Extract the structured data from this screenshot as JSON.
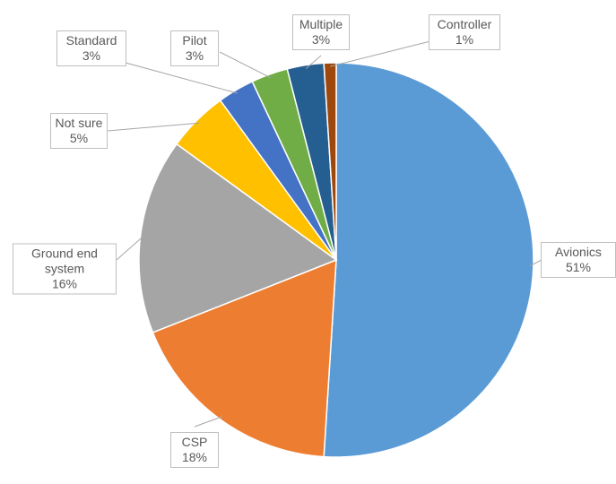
{
  "chart_data": {
    "type": "pie",
    "categories": [
      "Avionics",
      "CSP",
      "Ground end system",
      "Not sure",
      "Standard",
      "Pilot",
      "Multiple",
      "Controller"
    ],
    "values": [
      51,
      18,
      16,
      5,
      3,
      3,
      3,
      1
    ],
    "value_labels": [
      "51%",
      "18%",
      "16%",
      "5%",
      "3%",
      "3%",
      "3%",
      "1%"
    ],
    "colors": [
      "#5b9bd5",
      "#ed7d31",
      "#a5a5a5",
      "#ffc000",
      "#4472c4",
      "#70ad47",
      "#255e91",
      "#9e480e"
    ]
  }
}
